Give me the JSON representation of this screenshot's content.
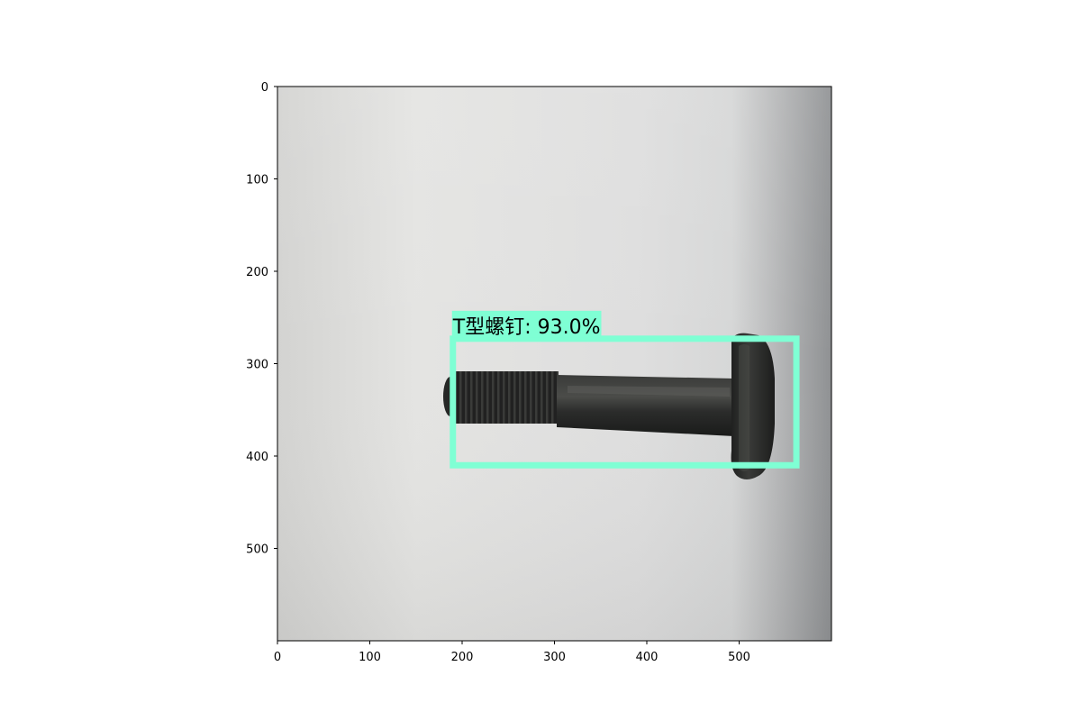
{
  "image": {
    "description_colors": {
      "background_light": "#e4e4e2",
      "background_mid": "#d6d6d4",
      "background_dark": "#8a8c8e",
      "bolt": "#2a2b2a",
      "bolt_highlight": "#4a4b48"
    }
  },
  "axes": {
    "x_ticks": [
      "0",
      "100",
      "200",
      "300",
      "400",
      "500"
    ],
    "y_ticks": [
      "0",
      "100",
      "200",
      "300",
      "400",
      "500"
    ],
    "x_range": [
      0,
      600
    ],
    "y_range": [
      0,
      600
    ]
  },
  "detection": {
    "label": "T型螺钉: 93.0%",
    "box": {
      "x1": 190,
      "y1": 273,
      "x2": 562,
      "y2": 410
    },
    "color": "#7fffd4"
  }
}
